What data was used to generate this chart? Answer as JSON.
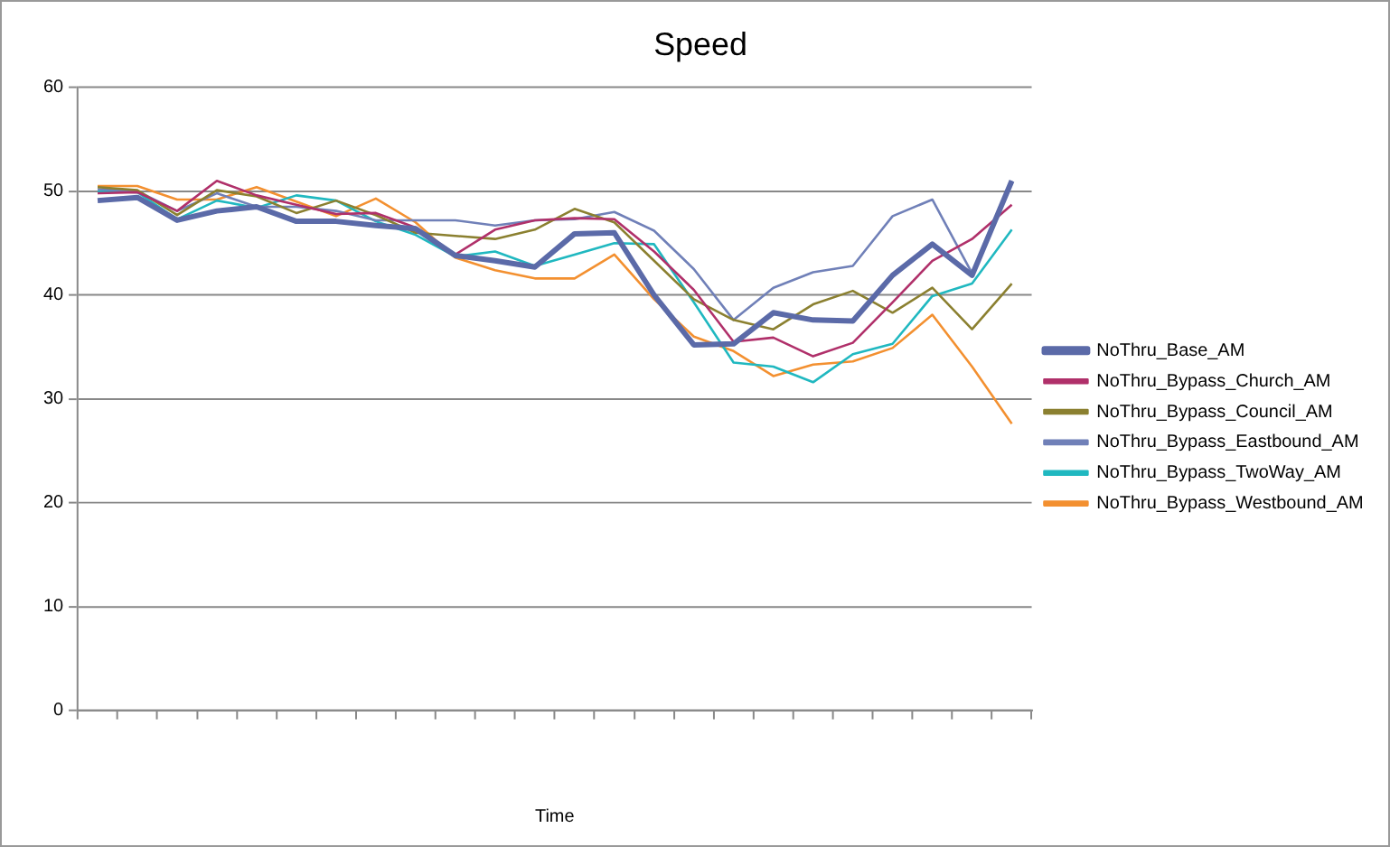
{
  "chart_data": {
    "type": "line",
    "title": "Speed",
    "xlabel": "Time",
    "categories": [
      null,
      null,
      null,
      null,
      null,
      null,
      null,
      null,
      null,
      null,
      null,
      null,
      null,
      null,
      null,
      null,
      null,
      null,
      null,
      null,
      null,
      null,
      null,
      null
    ],
    "ylim": [
      0,
      60
    ],
    "yticks": [
      0,
      10,
      20,
      30,
      40,
      50,
      60
    ],
    "grid": "y",
    "legend": "right",
    "marker": "none",
    "line_style": "solid",
    "series": [
      {
        "name": "NoThru_Base_AM",
        "color": "#5b6aa8",
        "values": [
          49.1,
          49.4,
          47.2,
          48.1,
          48.5,
          47.1,
          47.1,
          46.7,
          46.4,
          43.8,
          43.3,
          42.7,
          45.9,
          46.0,
          40.0,
          35.2,
          35.3,
          38.3,
          37.6,
          37.5,
          41.9,
          44.9,
          41.9,
          51.0
        ]
      },
      {
        "name": "NoThru_Bypass_Church_AM",
        "color": "#b0306a",
        "values": [
          49.8,
          49.9,
          48.1,
          51.0,
          49.6,
          48.7,
          47.8,
          47.9,
          46.5,
          43.9,
          46.3,
          47.2,
          47.4,
          47.3,
          44.2,
          40.5,
          35.5,
          35.9,
          34.1,
          35.4,
          39.3,
          43.3,
          45.4,
          48.7
        ]
      },
      {
        "name": "NoThru_Bypass_Council_AM",
        "color": "#8b8030",
        "values": [
          50.4,
          50.1,
          47.7,
          50.1,
          49.5,
          47.9,
          49.1,
          47.7,
          46.0,
          45.7,
          45.4,
          46.3,
          48.3,
          47.0,
          43.3,
          39.6,
          37.6,
          36.7,
          39.1,
          40.4,
          38.3,
          40.7,
          36.7,
          41.1
        ]
      },
      {
        "name": "NoThru_Bypass_Eastbound_AM",
        "color": "#7080b8",
        "values": [
          50.2,
          50.0,
          48.1,
          49.8,
          48.5,
          48.5,
          48.1,
          47.2,
          47.2,
          47.2,
          46.7,
          47.2,
          47.3,
          48.0,
          46.2,
          42.5,
          37.6,
          40.7,
          42.2,
          42.8,
          47.6,
          49.2,
          42.1,
          51.0
        ]
      },
      {
        "name": "NoThru_Bypass_TwoWay_AM",
        "color": "#20b8c0",
        "values": [
          50.0,
          49.9,
          47.3,
          49.1,
          48.4,
          49.6,
          49.1,
          47.1,
          45.8,
          43.7,
          44.2,
          42.8,
          43.9,
          45.0,
          44.9,
          39.3,
          33.5,
          33.1,
          31.6,
          34.3,
          35.3,
          39.9,
          41.1,
          46.3
        ]
      },
      {
        "name": "NoThru_Bypass_Westbound_AM",
        "color": "#f39030",
        "values": [
          50.5,
          50.5,
          49.2,
          49.2,
          50.4,
          49.0,
          47.6,
          49.3,
          47.0,
          43.6,
          42.4,
          41.6,
          41.6,
          43.9,
          39.6,
          36.0,
          34.6,
          32.2,
          33.3,
          33.6,
          34.9,
          38.1,
          33.1,
          27.6
        ]
      }
    ]
  }
}
